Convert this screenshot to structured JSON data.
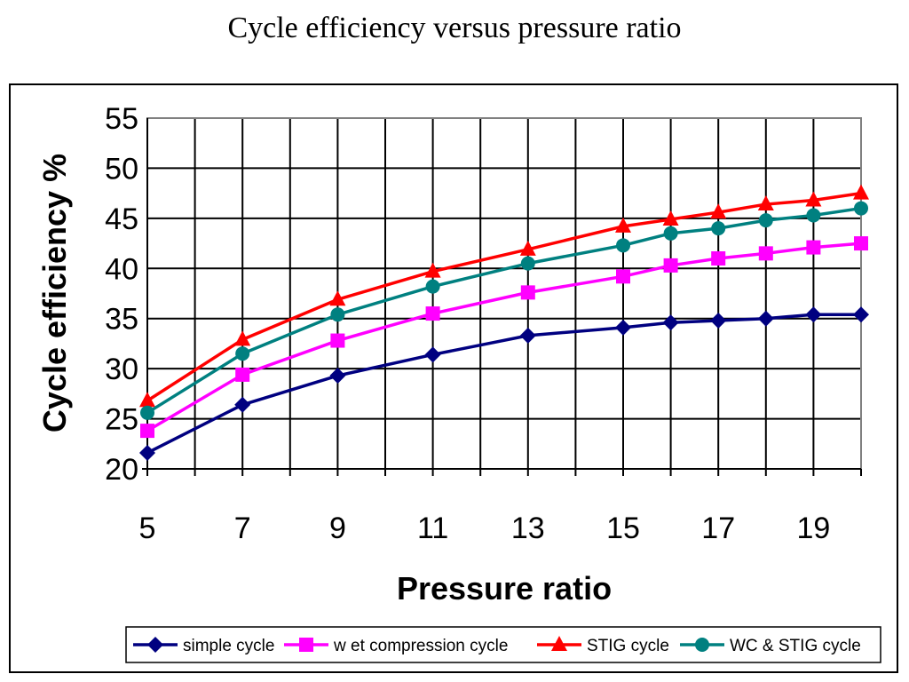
{
  "page": {
    "title": "Cycle efficiency versus pressure ratio"
  },
  "chart_data": {
    "type": "line",
    "title": "Cycle efficiency versus pressure ratio",
    "xlabel": "Pressure ratio",
    "ylabel": "Cycle efficiency %",
    "xlim": [
      5,
      20
    ],
    "ylim": [
      20,
      55
    ],
    "y_ticks": [
      20,
      25,
      30,
      35,
      40,
      45,
      50,
      55
    ],
    "x_tick_labels": [
      5,
      7,
      9,
      11,
      13,
      15,
      17,
      19
    ],
    "x_categories": [
      5,
      6,
      7,
      8,
      9,
      10,
      11,
      12,
      13,
      14,
      15,
      16,
      17,
      18,
      19,
      20
    ],
    "grid": true,
    "legend_position": "bottom",
    "series": [
      {
        "name": "simple cycle",
        "color": "#000080",
        "marker": "diamond",
        "x": [
          5,
          7,
          9,
          11,
          13,
          15,
          16,
          17,
          18,
          19,
          20
        ],
        "values": [
          21.6,
          26.4,
          29.3,
          31.4,
          33.3,
          34.1,
          34.6,
          34.8,
          35.0,
          35.4,
          35.4
        ]
      },
      {
        "name": "w et compression cycle",
        "color": "#ff00ff",
        "marker": "square",
        "x": [
          5,
          7,
          9,
          11,
          13,
          15,
          16,
          17,
          18,
          19,
          20
        ],
        "values": [
          23.8,
          29.4,
          32.8,
          35.5,
          37.6,
          39.2,
          40.3,
          41.0,
          41.5,
          42.1,
          42.5
        ]
      },
      {
        "name": "STIG cycle",
        "color": "#ff0000",
        "marker": "triangle",
        "x": [
          5,
          7,
          9,
          11,
          13,
          15,
          16,
          17,
          18,
          19,
          20
        ],
        "values": [
          26.8,
          32.9,
          36.9,
          39.7,
          41.9,
          44.2,
          44.9,
          45.6,
          46.4,
          46.8,
          47.5
        ]
      },
      {
        "name": "WC & STIG cycle",
        "color": "#008080",
        "marker": "circle",
        "x": [
          5,
          7,
          9,
          11,
          13,
          15,
          16,
          17,
          18,
          19,
          20
        ],
        "values": [
          25.6,
          31.5,
          35.4,
          38.2,
          40.5,
          42.3,
          43.5,
          44.0,
          44.8,
          45.3,
          46.0
        ]
      }
    ]
  }
}
